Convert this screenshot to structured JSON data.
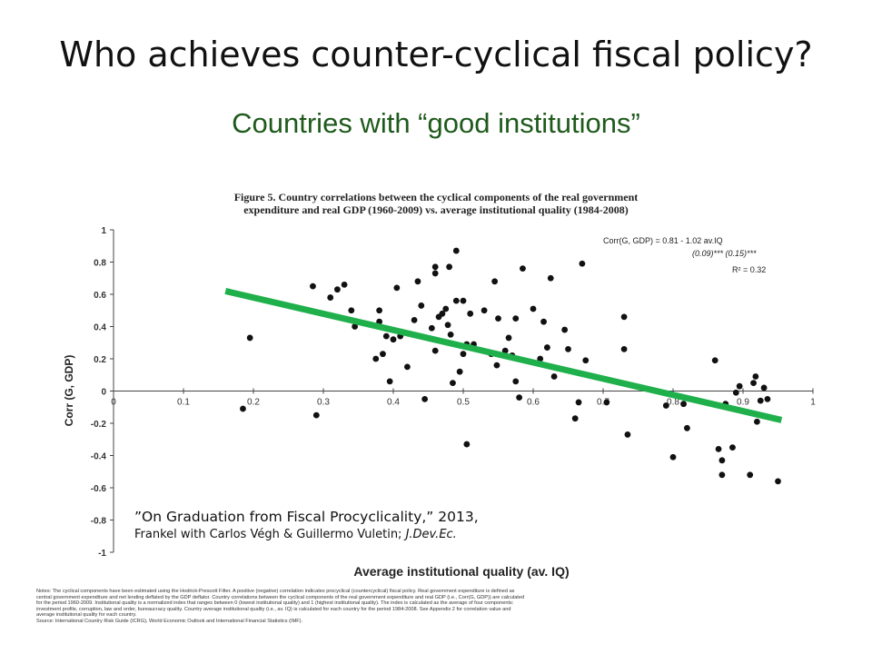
{
  "slide": {
    "title": "Who achieves counter-cyclical fiscal policy?",
    "subtitle": "Countries with “good institutions”"
  },
  "figure": {
    "caption_line1": "Figure 5. Country correlations between the cyclical components of the real government",
    "caption_line2": "expenditure and real GDP (1960-2009) vs. average institutional quality (1984-2008)"
  },
  "citation": {
    "line1": "”On Graduation from Fiscal Procyclicality,” 2013,",
    "line2_plain": "Frankel with Carlos Végh & Guillermo Vuletin; ",
    "line2_italic": "J.Dev.Ec."
  },
  "notes": {
    "line1": "Notes: The cyclical components have been estimated using the Hodrick-Prescott Filter. A positive (negative) correlation indicates procyclical (countercyclical) fiscal policy. Real government expenditure is defined as",
    "line2": "central government expenditure and net lending deflated by the GDP deflator. Country correlations between the cyclical components of the real government expenditure and real GDP (i.e., Corr(G, GDP)) are calculated",
    "line3": "for the period 1960-2009. Institutional quality is a normalized index that ranges between 0 (lowest institutional quality) and 1 (highest institutional quality). The index is calculated as the average of four components:",
    "line4": "investment profile, corruption, law and order, bureaucracy quality. Country average institutional quality (i.e., av. IQ) is calculated for each country for the period 1984-2008. See Appendix 2 for correlation value and",
    "line5": "average institutional quality for each country.",
    "line6": "Source: International Country Risk Guide (ICRG), World Economic Outlook and International Financial Statistics (IMF)."
  },
  "chart_data": {
    "type": "scatter",
    "xlabel": "Average institutional quality (av. IQ)",
    "ylabel": "Corr (G, GDP)",
    "xlim": [
      0,
      1
    ],
    "ylim": [
      -1,
      1
    ],
    "x_ticks": [
      0,
      0.1,
      0.2,
      0.3,
      0.4,
      0.5,
      0.6,
      0.7,
      0.8,
      0.9,
      1
    ],
    "y_ticks": [
      1,
      0.8,
      0.6,
      0.4,
      0.2,
      0,
      -0.2,
      -0.4,
      -0.6,
      -0.8,
      -1
    ],
    "x_tick_labels": [
      "0",
      "0.1",
      "0.2",
      "0.3",
      "0.4",
      "0.5",
      "0.6",
      "0.7",
      "0.8",
      "0.9",
      "1"
    ],
    "y_tick_labels": [
      "1",
      "0.8",
      "0.6",
      "0.4",
      "0.2",
      "0",
      "-0.2",
      "-0.4",
      "-0.6",
      "-0.8",
      "-1"
    ],
    "grid": false,
    "regression_annotation": {
      "line1": "Corr(G, GDP) = 0.81    -    1.02 av.IQ",
      "line2": "(0.09)***         (0.15)***",
      "line3": "R² = 0.32"
    },
    "fit_line": {
      "x": [
        0.16,
        0.955
      ],
      "y": [
        0.62,
        -0.18
      ],
      "color": "#1fb04c"
    },
    "points": [
      {
        "x": 0.185,
        "y": -0.11
      },
      {
        "x": 0.195,
        "y": 0.33
      },
      {
        "x": 0.285,
        "y": 0.65
      },
      {
        "x": 0.29,
        "y": -0.15
      },
      {
        "x": 0.31,
        "y": 0.58
      },
      {
        "x": 0.32,
        "y": 0.63
      },
      {
        "x": 0.33,
        "y": 0.66
      },
      {
        "x": 0.34,
        "y": 0.5
      },
      {
        "x": 0.345,
        "y": 0.4
      },
      {
        "x": 0.38,
        "y": 0.5
      },
      {
        "x": 0.38,
        "y": 0.43
      },
      {
        "x": 0.39,
        "y": 0.34
      },
      {
        "x": 0.375,
        "y": 0.2
      },
      {
        "x": 0.385,
        "y": 0.23
      },
      {
        "x": 0.395,
        "y": 0.06
      },
      {
        "x": 0.4,
        "y": 0.32
      },
      {
        "x": 0.41,
        "y": 0.34
      },
      {
        "x": 0.405,
        "y": 0.64
      },
      {
        "x": 0.42,
        "y": 0.15
      },
      {
        "x": 0.43,
        "y": 0.44
      },
      {
        "x": 0.435,
        "y": 0.68
      },
      {
        "x": 0.44,
        "y": 0.53
      },
      {
        "x": 0.445,
        "y": -0.05
      },
      {
        "x": 0.455,
        "y": 0.39
      },
      {
        "x": 0.46,
        "y": 0.73
      },
      {
        "x": 0.46,
        "y": 0.77
      },
      {
        "x": 0.465,
        "y": 0.46
      },
      {
        "x": 0.46,
        "y": 0.25
      },
      {
        "x": 0.47,
        "y": 0.48
      },
      {
        "x": 0.475,
        "y": 0.51
      },
      {
        "x": 0.478,
        "y": 0.41
      },
      {
        "x": 0.48,
        "y": 0.77
      },
      {
        "x": 0.482,
        "y": 0.35
      },
      {
        "x": 0.485,
        "y": 0.05
      },
      {
        "x": 0.49,
        "y": 0.87
      },
      {
        "x": 0.49,
        "y": 0.56
      },
      {
        "x": 0.495,
        "y": 0.12
      },
      {
        "x": 0.5,
        "y": 0.56
      },
      {
        "x": 0.5,
        "y": 0.23
      },
      {
        "x": 0.505,
        "y": -0.33
      },
      {
        "x": 0.51,
        "y": 0.48
      },
      {
        "x": 0.505,
        "y": 0.29
      },
      {
        "x": 0.515,
        "y": 0.29
      },
      {
        "x": 0.53,
        "y": 0.5
      },
      {
        "x": 0.54,
        "y": 0.23
      },
      {
        "x": 0.545,
        "y": 0.68
      },
      {
        "x": 0.548,
        "y": 0.16
      },
      {
        "x": 0.55,
        "y": 0.45
      },
      {
        "x": 0.56,
        "y": 0.25
      },
      {
        "x": 0.565,
        "y": 0.33
      },
      {
        "x": 0.57,
        "y": 0.22
      },
      {
        "x": 0.575,
        "y": 0.45
      },
      {
        "x": 0.575,
        "y": 0.06
      },
      {
        "x": 0.578,
        "y": 0.2
      },
      {
        "x": 0.58,
        "y": -0.04
      },
      {
        "x": 0.585,
        "y": 0.76
      },
      {
        "x": 0.6,
        "y": 0.51
      },
      {
        "x": 0.61,
        "y": 0.2
      },
      {
        "x": 0.615,
        "y": 0.43
      },
      {
        "x": 0.62,
        "y": 0.27
      },
      {
        "x": 0.625,
        "y": 0.7
      },
      {
        "x": 0.63,
        "y": 0.09
      },
      {
        "x": 0.645,
        "y": 0.38
      },
      {
        "x": 0.65,
        "y": 0.26
      },
      {
        "x": 0.66,
        "y": -0.17
      },
      {
        "x": 0.665,
        "y": -0.07
      },
      {
        "x": 0.67,
        "y": 0.79
      },
      {
        "x": 0.675,
        "y": 0.19
      },
      {
        "x": 0.705,
        "y": -0.07
      },
      {
        "x": 0.735,
        "y": -0.27
      },
      {
        "x": 0.73,
        "y": 0.46
      },
      {
        "x": 0.73,
        "y": 0.26
      },
      {
        "x": 0.79,
        "y": -0.09
      },
      {
        "x": 0.8,
        "y": -0.41
      },
      {
        "x": 0.815,
        "y": -0.08
      },
      {
        "x": 0.82,
        "y": -0.23
      },
      {
        "x": 0.86,
        "y": 0.19
      },
      {
        "x": 0.865,
        "y": -0.36
      },
      {
        "x": 0.87,
        "y": -0.43
      },
      {
        "x": 0.87,
        "y": -0.52
      },
      {
        "x": 0.875,
        "y": -0.08
      },
      {
        "x": 0.885,
        "y": -0.35
      },
      {
        "x": 0.89,
        "y": -0.01
      },
      {
        "x": 0.895,
        "y": 0.03
      },
      {
        "x": 0.91,
        "y": -0.52
      },
      {
        "x": 0.915,
        "y": 0.05
      },
      {
        "x": 0.918,
        "y": 0.09
      },
      {
        "x": 0.92,
        "y": -0.19
      },
      {
        "x": 0.925,
        "y": -0.06
      },
      {
        "x": 0.93,
        "y": 0.02
      },
      {
        "x": 0.935,
        "y": -0.05
      },
      {
        "x": 0.95,
        "y": -0.56
      }
    ]
  }
}
